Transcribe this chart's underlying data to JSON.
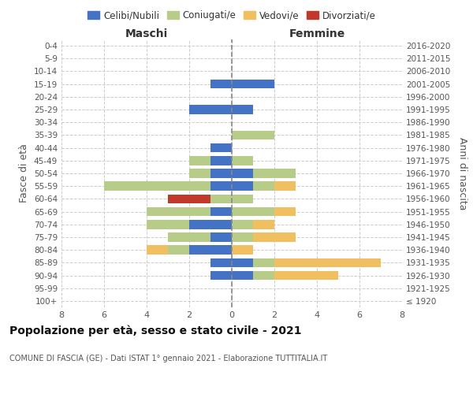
{
  "age_groups": [
    "100+",
    "95-99",
    "90-94",
    "85-89",
    "80-84",
    "75-79",
    "70-74",
    "65-69",
    "60-64",
    "55-59",
    "50-54",
    "45-49",
    "40-44",
    "35-39",
    "30-34",
    "25-29",
    "20-24",
    "15-19",
    "10-14",
    "5-9",
    "0-4"
  ],
  "birth_years": [
    "≤ 1920",
    "1921-1925",
    "1926-1930",
    "1931-1935",
    "1936-1940",
    "1941-1945",
    "1946-1950",
    "1951-1955",
    "1956-1960",
    "1961-1965",
    "1966-1970",
    "1971-1975",
    "1976-1980",
    "1981-1985",
    "1986-1990",
    "1991-1995",
    "1996-2000",
    "2001-2005",
    "2006-2010",
    "2011-2015",
    "2016-2020"
  ],
  "maschi": {
    "celibi": [
      0,
      0,
      1,
      1,
      2,
      1,
      2,
      1,
      0,
      1,
      1,
      1,
      1,
      0,
      0,
      2,
      0,
      1,
      0,
      0,
      0
    ],
    "coniugati": [
      0,
      0,
      0,
      0,
      1,
      2,
      2,
      3,
      1,
      5,
      1,
      1,
      0,
      0,
      0,
      0,
      0,
      0,
      0,
      0,
      0
    ],
    "vedovi": [
      0,
      0,
      0,
      0,
      1,
      0,
      0,
      0,
      0,
      0,
      0,
      0,
      0,
      0,
      0,
      0,
      0,
      0,
      0,
      0,
      0
    ],
    "divorziati": [
      0,
      0,
      0,
      0,
      0,
      0,
      0,
      0,
      2,
      0,
      0,
      0,
      0,
      0,
      0,
      0,
      0,
      0,
      0,
      0,
      0
    ]
  },
  "femmine": {
    "nubili": [
      0,
      0,
      1,
      1,
      0,
      0,
      0,
      0,
      0,
      1,
      1,
      0,
      0,
      0,
      0,
      1,
      0,
      2,
      0,
      0,
      0
    ],
    "coniugate": [
      0,
      0,
      1,
      1,
      0,
      1,
      1,
      2,
      1,
      1,
      2,
      1,
      0,
      2,
      0,
      0,
      0,
      0,
      0,
      0,
      0
    ],
    "vedove": [
      0,
      0,
      3,
      5,
      1,
      2,
      1,
      1,
      0,
      1,
      0,
      0,
      0,
      0,
      0,
      0,
      0,
      0,
      0,
      0,
      0
    ],
    "divorziate": [
      0,
      0,
      0,
      0,
      0,
      0,
      0,
      0,
      0,
      0,
      0,
      0,
      0,
      0,
      0,
      0,
      0,
      0,
      0,
      0,
      0
    ]
  },
  "colors": {
    "celibi_nubili": "#4472c4",
    "coniugati": "#b8cc8a",
    "vedovi": "#f0c060",
    "divorziati": "#c0392b"
  },
  "xlim": 8,
  "title": "Popolazione per età, sesso e stato civile - 2021",
  "subtitle": "COMUNE DI FASCIA (GE) - Dati ISTAT 1° gennaio 2021 - Elaborazione TUTTITALIA.IT",
  "xlabel_left": "Maschi",
  "xlabel_right": "Femmine",
  "ylabel_left": "Fasce di età",
  "ylabel_right": "Anni di nascita",
  "legend_labels": [
    "Celibi/Nubili",
    "Coniugati/e",
    "Vedovi/e",
    "Divorziati/e"
  ],
  "bg_color": "#ffffff",
  "grid_color": "#cccccc"
}
